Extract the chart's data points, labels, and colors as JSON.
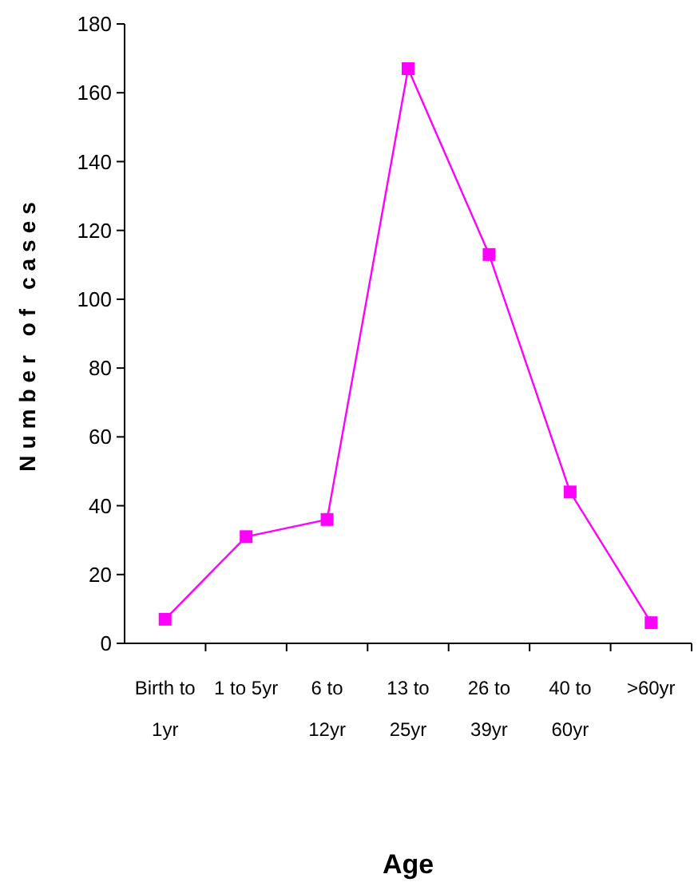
{
  "chart_data": {
    "type": "line",
    "xlabel": "Age",
    "ylabel": "Number of cases",
    "categories": [
      "Birth to\n1yr",
      "1 to 5yr",
      "6 to\n12yr",
      "13 to\n25yr",
      "26 to\n39yr",
      "40 to\n60yr",
      ">60yr"
    ],
    "series": [
      {
        "color": "#ff00ff",
        "values": [
          7,
          31,
          36,
          167,
          113,
          44,
          6
        ]
      }
    ],
    "ylim": [
      0,
      180
    ],
    "yticks": [
      0,
      20,
      40,
      60,
      80,
      100,
      120,
      140,
      160,
      180
    ],
    "grid": false,
    "marker": "square",
    "line_style": "solid"
  }
}
